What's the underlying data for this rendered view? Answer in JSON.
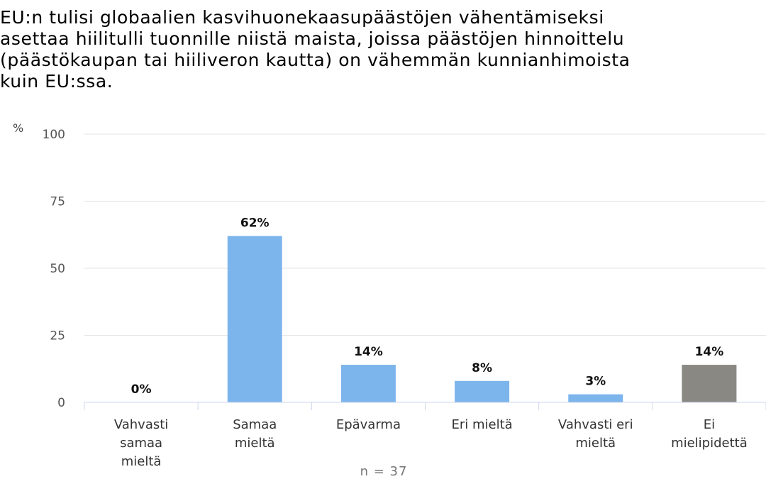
{
  "title": "EU:n tulisi globaalien kasvihuonekaasupäästöjen vähentämiseksi\nasettaa hiilitulli tuonnille niistä maista, joissa päästöjen hinnoittelu\n(päästökaupan tai hiiliveron kautta) on vähemmän kunnianhimoista\nkuin EU:ssa.",
  "chart_data": {
    "type": "bar",
    "title": "EU:n tulisi globaalien kasvihuonekaasupäästöjen vähentämiseksi asettaa hiilitulli tuonnille niistä maista, joissa päästöjen hinnoittelu (päästökaupan tai hiiliveron kautta) on vähemmän kunnianhimoista kuin EU:ssa.",
    "ylabel": "%",
    "xlabel": "",
    "ylim": [
      0,
      100
    ],
    "yticks": [
      "0",
      "25",
      "50",
      "75",
      "100"
    ],
    "grid": true,
    "categories": [
      [
        "Vahvasti",
        "samaa",
        "mieltä"
      ],
      [
        "Samaa",
        "mieltä"
      ],
      [
        "Epävarma"
      ],
      [
        "Eri mieltä"
      ],
      [
        "Vahvasti eri",
        "mieltä"
      ],
      [
        "Ei",
        "mielipidettä"
      ]
    ],
    "values": [
      0,
      62,
      14,
      8,
      3,
      14
    ],
    "data_labels": [
      "0%",
      "62%",
      "14%",
      "8%",
      "3%",
      "14%"
    ],
    "colors": [
      "#7cb5ec",
      "#7cb5ec",
      "#7cb5ec",
      "#7cb5ec",
      "#7cb5ec",
      "#898883"
    ],
    "note": "n = 37"
  }
}
